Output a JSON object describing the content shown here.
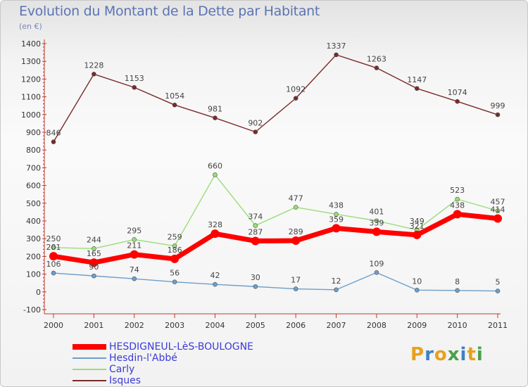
{
  "header": {
    "title": "Evolution du Montant de la Dette par Habitant",
    "subtitle": "(en €)"
  },
  "brand": {
    "text": "Proxiti",
    "letters": [
      "P",
      "r",
      "o",
      "x",
      "i",
      "t",
      "i"
    ],
    "colors": [
      "#e8a01e",
      "#3b82c4",
      "#e8a01e",
      "#4aa04a",
      "#3b82c4",
      "#e8a01e",
      "#4aa04a"
    ]
  },
  "chart_data": {
    "type": "line",
    "title": "Evolution du Montant de la Dette par Habitant",
    "subtitle": "(en €)",
    "x": [
      "2000",
      "2001",
      "2002",
      "2003",
      "2004",
      "2005",
      "2006",
      "2007",
      "2008",
      "2009",
      "2010",
      "2011"
    ],
    "ylim": [
      -100,
      1400
    ],
    "yticks": [
      -100,
      0,
      100,
      200,
      300,
      400,
      500,
      600,
      700,
      800,
      900,
      1000,
      1100,
      1200,
      1300,
      1400
    ],
    "grid": false,
    "legend_position": "bottom-left",
    "series": [
      {
        "name": "HESDIGNEUL-LèS-BOULOGNE",
        "values": [
          201,
          165,
          211,
          186,
          328,
          287,
          289,
          359,
          339,
          321,
          438,
          414
        ],
        "color": "#ff0000",
        "width": 7,
        "marker": 6
      },
      {
        "name": "Hesdin-l'Abbé",
        "values": [
          106,
          90,
          74,
          56,
          42,
          30,
          17,
          12,
          109,
          10,
          8,
          5
        ],
        "color": "#6d9ec9",
        "width": 1.4,
        "marker": 3
      },
      {
        "name": "Carly",
        "values": [
          250,
          244,
          295,
          259,
          660,
          374,
          477,
          438,
          401,
          349,
          523,
          457
        ],
        "color": "#99dd77",
        "width": 1.4,
        "marker": 3
      },
      {
        "name": "Isques",
        "values": [
          846,
          1228,
          1153,
          1054,
          981,
          902,
          1092,
          1337,
          1263,
          1147,
          1074,
          999
        ],
        "color": "#7a2a2a",
        "width": 1.4,
        "marker": 3
      }
    ]
  }
}
